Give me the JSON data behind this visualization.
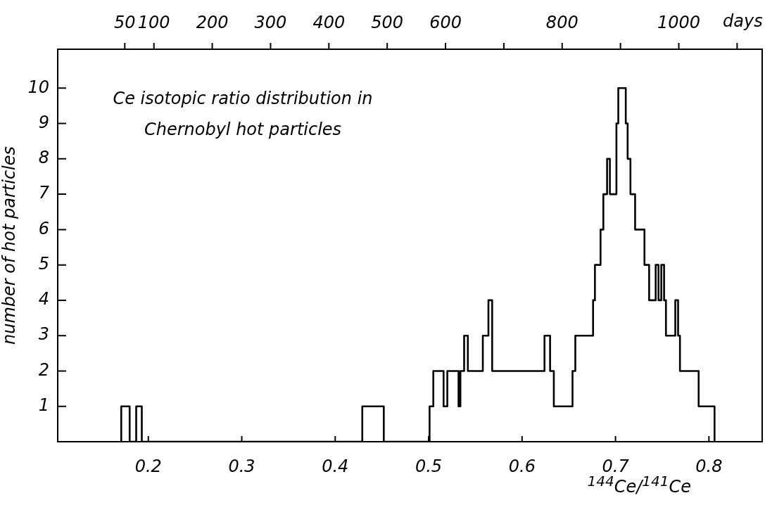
{
  "chart_data": {
    "type": "histogram",
    "title": "Ce isotopic ratio distribution in Chernobyl hot particles",
    "xlabel": "$^{144}$Ce/$^{141}$Ce",
    "ylabel": "number of hot particles",
    "x2label": "days",
    "bins": [
      0.171,
      0.18,
      0.187,
      0.193,
      0.429,
      0.452,
      0.501,
      0.505,
      0.516,
      0.52,
      0.532,
      0.534,
      0.538,
      0.542,
      0.558,
      0.564,
      0.568,
      0.624,
      0.63,
      0.634,
      0.654,
      0.657,
      0.676,
      0.678,
      0.684,
      0.687,
      0.691,
      0.694,
      0.701,
      0.703,
      0.711,
      0.713,
      0.716,
      0.721,
      0.731,
      0.736,
      0.743,
      0.746,
      0.749,
      0.752,
      0.754,
      0.764,
      0.767,
      0.769,
      0.789,
      0.806
    ],
    "values": [
      1,
      0,
      1,
      0,
      1,
      0,
      1,
      2,
      1,
      2,
      1,
      2,
      3,
      2,
      3,
      4,
      2,
      3,
      2,
      1,
      2,
      3,
      4,
      5,
      6,
      7,
      8,
      7,
      9,
      10,
      9,
      8,
      7,
      6,
      5,
      4,
      5,
      4,
      5,
      4,
      3,
      4,
      3,
      2,
      1
    ],
    "color": "#000000",
    "xlim": [
      0.103,
      0.857
    ],
    "xticks": [
      0.2,
      0.3,
      0.4,
      0.5,
      0.6,
      0.7,
      0.8
    ],
    "ylim": [
      0,
      11.1
    ],
    "yticks": [
      1,
      2,
      3,
      4,
      5,
      6,
      7,
      8,
      9,
      10
    ],
    "x2lim": [
      -65,
      1143
    ],
    "x2ticks": [
      50,
      100,
      200,
      300,
      400,
      500,
      600,
      {
        "value": 700,
        "label": null
      },
      800,
      {
        "value": 900,
        "label": null
      },
      1000,
      {
        "value": 1100,
        "label": null
      }
    ]
  }
}
